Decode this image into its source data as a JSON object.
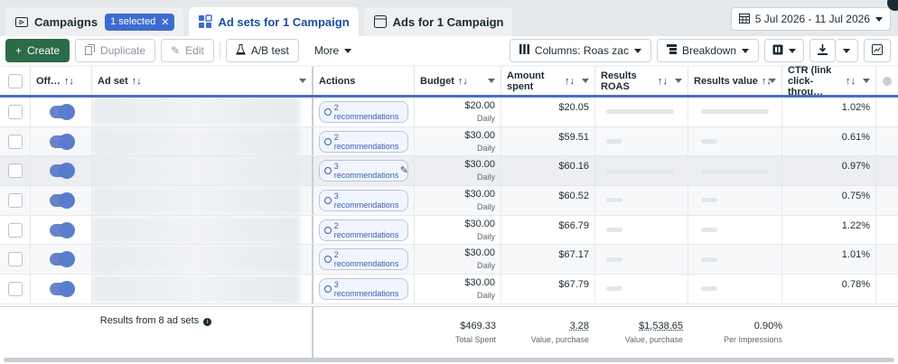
{
  "tabs": {
    "campaigns": {
      "label": "Campaigns",
      "chip": "1 selected"
    },
    "adsets": {
      "label": "Ad sets for 1 Campaign"
    },
    "ads": {
      "label": "Ads for 1 Campaign"
    }
  },
  "date_range": "5 Jul 2026 - 11 Jul 2026",
  "toolbar": {
    "create": "Create",
    "duplicate": "Duplicate",
    "edit": "Edit",
    "ab_test": "A/B test",
    "more": "More",
    "columns": "Columns: Roas zac",
    "breakdown": "Breakdown"
  },
  "columns": {
    "off": "Off…",
    "adset": "Ad set",
    "actions": "Actions",
    "budget": "Budget",
    "amount_spent": "Amount spent",
    "results_roas": "Results ROAS",
    "results_value": "Results value",
    "ctr": "CTR (link click-throu…"
  },
  "sort_glyph": "↑↓",
  "rows": [
    {
      "recommendations": "2 recommendations",
      "budget": "$20.00",
      "budget_type": "Daily",
      "spent": "$20.05",
      "ctr": "1.02%"
    },
    {
      "recommendations": "2 recommendations",
      "budget": "$30.00",
      "budget_type": "Daily",
      "spent": "$59.51",
      "ctr": "0.61%"
    },
    {
      "recommendations": "3 recommendations",
      "budget": "$30.00",
      "budget_type": "Daily",
      "spent": "$60.16",
      "ctr": "0.97%"
    },
    {
      "recommendations": "3 recommendations",
      "budget": "$30.00",
      "budget_type": "Daily",
      "spent": "$60.52",
      "ctr": "0.75%"
    },
    {
      "recommendations": "2 recommendations",
      "budget": "$30.00",
      "budget_type": "Daily",
      "spent": "$66.79",
      "ctr": "1.22%"
    },
    {
      "recommendations": "2 recommendations",
      "budget": "$30.00",
      "budget_type": "Daily",
      "spent": "$67.17",
      "ctr": "1.01%"
    },
    {
      "recommendations": "3 recommendations",
      "budget": "$30.00",
      "budget_type": "Daily",
      "spent": "$67.79",
      "ctr": "0.78%"
    }
  ],
  "footer": {
    "results_label": "Results from 8 ad sets",
    "spent": "$469.33",
    "spent_sub": "Total Spent",
    "roas": "3.28",
    "roas_sub": "Value, purchase",
    "value": "$1,538.65",
    "value_sub": "Value, purchase",
    "ctr": "0.90%",
    "ctr_sub": "Per Impressions"
  },
  "icons": {
    "campaigns": "folder-icon",
    "adsets": "grid-icon",
    "ads": "ad-card-icon",
    "calendar": "calendar-icon"
  },
  "colors": {
    "accent": "#4b6fc2",
    "create": "#2b6b47",
    "chip": "#3d6bd1"
  }
}
